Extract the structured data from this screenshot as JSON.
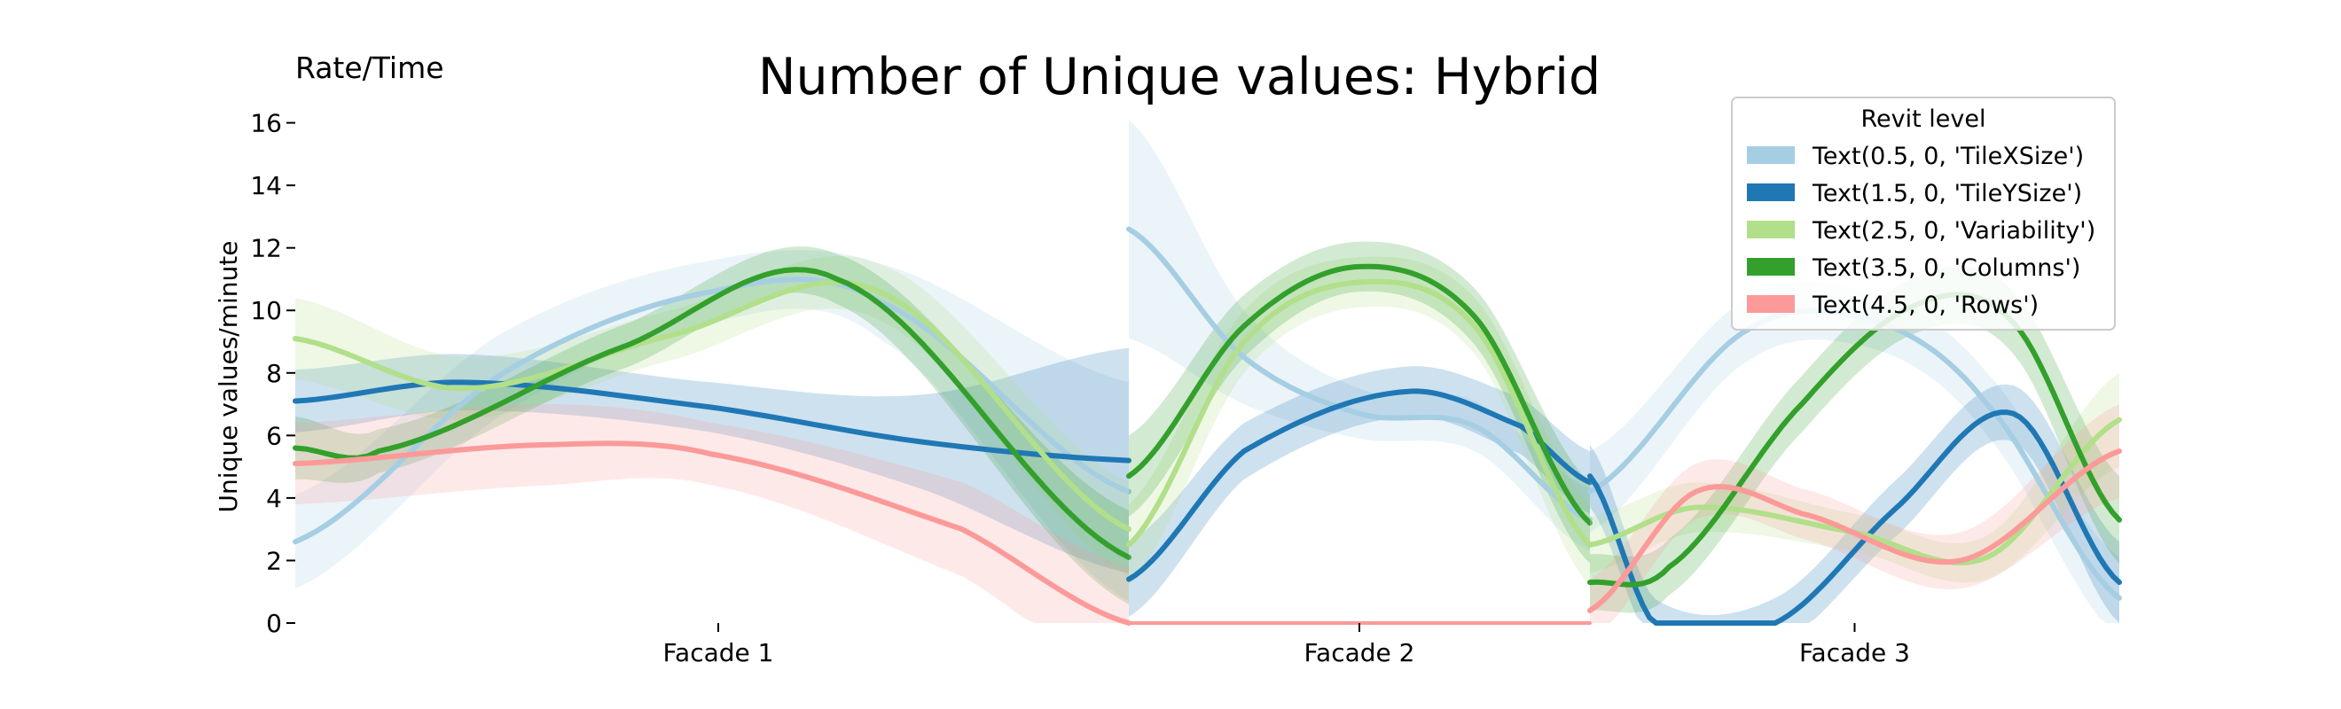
{
  "chart_data": {
    "type": "line",
    "title": "Number of Unique values: Hybrid",
    "corner_label": "Rate/Time",
    "ylabel": "Unique values/minute",
    "xlabel": "",
    "ylim": [
      0,
      16.3
    ],
    "yticks": [
      "0",
      "2",
      "4",
      "6",
      "8",
      "10",
      "12",
      "14",
      "16"
    ],
    "grid": false,
    "legend": {
      "title": "Revit level",
      "placement": "top-right",
      "entries": [
        {
          "label": "Text(0.5, 0, 'TileXSize')",
          "color": "#a6cee3"
        },
        {
          "label": "Text(1.5, 0, 'TileYSize')",
          "color": "#1f78b4"
        },
        {
          "label": "Text(2.5, 0, 'Variability')",
          "color": "#b2df8a"
        },
        {
          "label": "Text(3.5, 0, 'Columns')",
          "color": "#33a02c"
        },
        {
          "label": "Text(4.5, 0, 'Rows')",
          "color": "#fb9a99"
        }
      ]
    },
    "panels": [
      {
        "label": "Facade 1",
        "x_range": [
          0,
          1
        ],
        "series": [
          {
            "color": "#a6cee3",
            "x": [
              0,
              0.25,
              0.5,
              0.7,
              1
            ],
            "y": [
              2.6,
              8.0,
              10.6,
              10.3,
              4.2
            ],
            "band": [
              1.5,
              1.3,
              1.0,
              1.2,
              3.5
            ]
          },
          {
            "color": "#1f78b4",
            "x": [
              0,
              0.2,
              0.5,
              0.75,
              1
            ],
            "y": [
              7.1,
              7.7,
              6.9,
              5.8,
              5.2
            ],
            "band": [
              1.0,
              0.9,
              0.8,
              1.5,
              3.6
            ]
          },
          {
            "color": "#b2df8a",
            "x": [
              0,
              0.2,
              0.45,
              0.7,
              1
            ],
            "y": [
              9.1,
              7.5,
              9.2,
              10.6,
              3.0
            ],
            "band": [
              1.3,
              1.0,
              0.8,
              0.9,
              1.5
            ]
          },
          {
            "color": "#33a02c",
            "x": [
              0,
              0.1,
              0.4,
              0.65,
              1
            ],
            "y": [
              5.6,
              5.5,
              8.9,
              11.0,
              2.1
            ],
            "band": [
              1.0,
              0.7,
              0.7,
              0.8,
              1.5
            ]
          },
          {
            "color": "#fb9a99",
            "x": [
              0,
              0.3,
              0.5,
              0.8,
              1
            ],
            "y": [
              5.1,
              5.7,
              5.4,
              3.0,
              0.0
            ],
            "band": [
              1.3,
              1.3,
              1.0,
              1.5,
              1.8
            ]
          }
        ]
      },
      {
        "label": "Facade 2",
        "x_range": [
          0,
          1
        ],
        "series": [
          {
            "color": "#a6cee3",
            "x": [
              0,
              0.25,
              0.5,
              0.75,
              1
            ],
            "y": [
              12.6,
              8.5,
              6.7,
              6.3,
              3.3
            ],
            "band": [
              3.5,
              1.5,
              0.8,
              0.8,
              1.0
            ]
          },
          {
            "color": "#1f78b4",
            "x": [
              0,
              0.25,
              0.6,
              0.85,
              1
            ],
            "y": [
              1.4,
              5.5,
              7.4,
              6.3,
              4.5
            ],
            "band": [
              1.2,
              0.9,
              0.8,
              0.9,
              1.0
            ]
          },
          {
            "color": "#b2df8a",
            "x": [
              0,
              0.25,
              0.5,
              0.75,
              1
            ],
            "y": [
              2.5,
              9.0,
              10.9,
              9.5,
              2.5
            ],
            "band": [
              1.3,
              1.0,
              0.8,
              0.9,
              1.3
            ]
          },
          {
            "color": "#33a02c",
            "x": [
              0,
              0.25,
              0.5,
              0.75,
              1
            ],
            "y": [
              4.7,
              9.5,
              11.4,
              9.8,
              3.2
            ],
            "band": [
              1.3,
              1.0,
              0.8,
              0.9,
              1.3
            ]
          },
          {
            "color": "#fb9a99",
            "x": [
              0,
              1
            ],
            "y": [
              0.0,
              0.0
            ],
            "band": [
              0.0,
              0.0
            ]
          }
        ]
      },
      {
        "label": "Facade 3",
        "x_range": [
          0,
          1
        ],
        "series": [
          {
            "color": "#a6cee3",
            "x": [
              0,
              0.3,
              0.55,
              0.75,
              1
            ],
            "y": [
              4.2,
              9.4,
              9.6,
              7.0,
              0.8
            ],
            "band": [
              1.3,
              1.0,
              0.9,
              1.0,
              1.3
            ]
          },
          {
            "color": "#1f78b4",
            "x": [
              0,
              0.12,
              0.35,
              0.58,
              0.8,
              1
            ],
            "y": [
              4.7,
              0.0,
              0.0,
              3.7,
              6.7,
              1.3
            ],
            "band": [
              1.0,
              0.8,
              0.8,
              0.9,
              0.9,
              1.3
            ]
          },
          {
            "color": "#b2df8a",
            "x": [
              0,
              0.2,
              0.5,
              0.75,
              1
            ],
            "y": [
              2.5,
              3.7,
              2.9,
              2.1,
              6.5
            ],
            "band": [
              0.9,
              0.8,
              0.6,
              0.7,
              1.5
            ]
          },
          {
            "color": "#33a02c",
            "x": [
              0,
              0.15,
              0.4,
              0.62,
              0.8,
              1
            ],
            "y": [
              1.3,
              1.8,
              7.0,
              10.2,
              9.6,
              3.3
            ],
            "band": [
              0.9,
              0.9,
              0.9,
              0.9,
              1.0,
              1.4
            ]
          },
          {
            "color": "#fb9a99",
            "x": [
              0,
              0.2,
              0.4,
              0.7,
              1
            ],
            "y": [
              0.4,
              4.2,
              3.5,
              2.0,
              5.5
            ],
            "band": [
              1.0,
              0.9,
              0.8,
              0.9,
              1.5
            ]
          }
        ]
      }
    ]
  }
}
